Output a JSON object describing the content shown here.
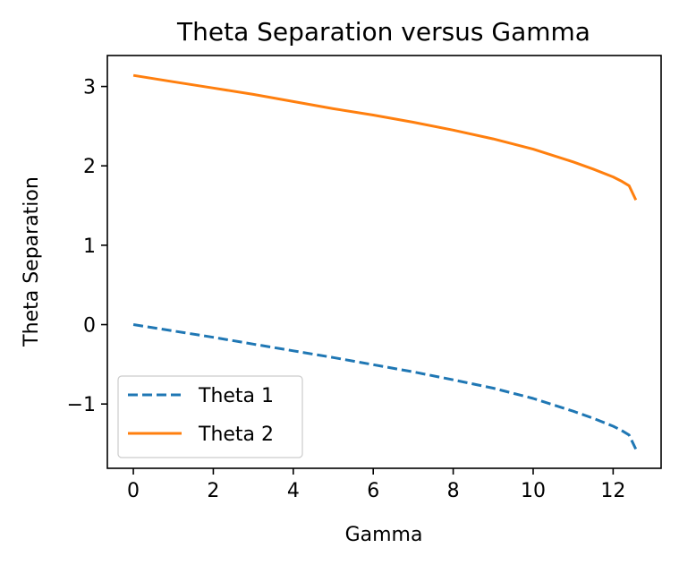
{
  "chart_data": {
    "type": "line",
    "title": "Theta Separation versus Gamma",
    "xlabel": "Gamma",
    "ylabel": "Theta Separation",
    "xlim": [
      -0.65,
      13.2
    ],
    "ylim": [
      -1.81,
      3.39
    ],
    "xticks": [
      0,
      2,
      4,
      6,
      8,
      10,
      12
    ],
    "yticks": [
      -1,
      0,
      1,
      2,
      3
    ],
    "x_tick_labels": [
      "0",
      "2",
      "4",
      "6",
      "8",
      "10",
      "12"
    ],
    "y_tick_labels": [
      "−1",
      "0",
      "1",
      "2",
      "3"
    ],
    "grid": false,
    "legend_position": "lower-left",
    "series": [
      {
        "name": "Theta 1",
        "color": "#1f77b4",
        "linestyle": "dashed",
        "x": [
          0,
          1,
          2,
          3,
          4,
          5,
          6,
          7,
          8,
          9,
          10,
          11,
          11.5,
          12,
          12.2,
          12.4,
          12.57
        ],
        "y": [
          0,
          -0.08,
          -0.16,
          -0.245,
          -0.33,
          -0.415,
          -0.505,
          -0.595,
          -0.695,
          -0.8,
          -0.93,
          -1.09,
          -1.18,
          -1.28,
          -1.33,
          -1.39,
          -1.57
        ]
      },
      {
        "name": "Theta 2",
        "color": "#ff7f0e",
        "linestyle": "solid",
        "x": [
          0,
          1,
          2,
          3,
          4,
          5,
          6,
          7,
          8,
          9,
          10,
          11,
          11.5,
          12,
          12.2,
          12.4,
          12.57
        ],
        "y": [
          3.14,
          3.06,
          2.98,
          2.9,
          2.81,
          2.72,
          2.64,
          2.55,
          2.45,
          2.34,
          2.21,
          2.05,
          1.96,
          1.86,
          1.81,
          1.75,
          1.57
        ]
      }
    ]
  }
}
